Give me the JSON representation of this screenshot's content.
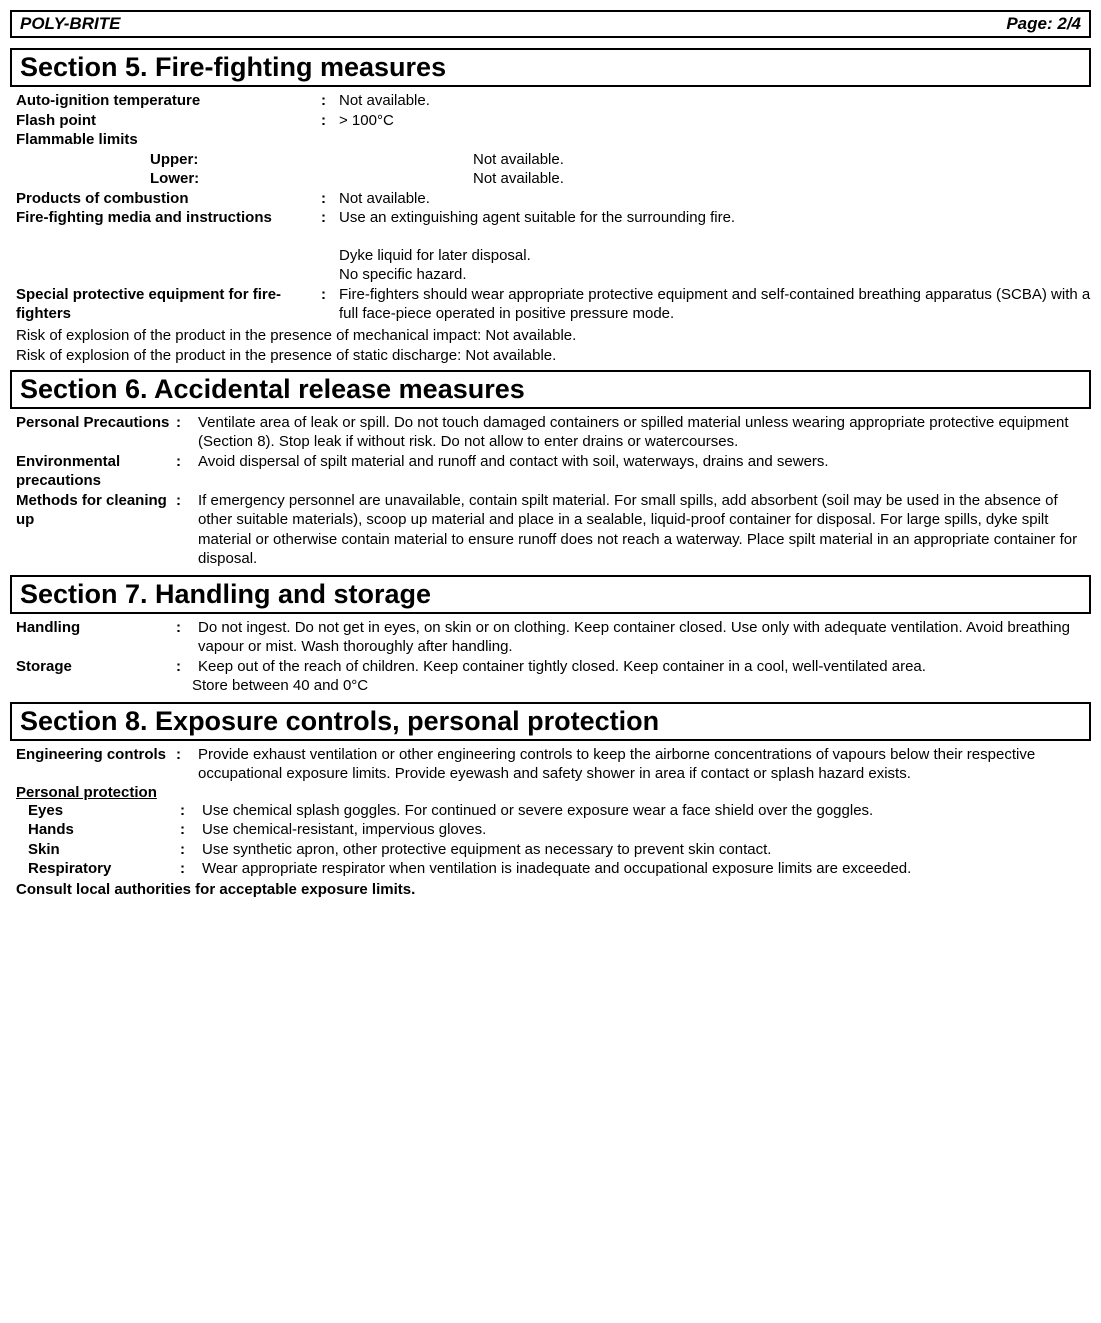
{
  "header": {
    "product": "POLY-BRITE",
    "page": "Page: 2/4"
  },
  "section5": {
    "title": "Section 5. Fire-fighting measures",
    "auto_ignition_label": "Auto-ignition temperature",
    "auto_ignition_value": "Not available.",
    "flash_point_label": "Flash point",
    "flash_point_value": "> 100°C",
    "flammable_limits_label": "Flammable limits",
    "upper_label": "Upper:",
    "upper_value": "Not available.",
    "lower_label": "Lower:",
    "lower_value": "Not available.",
    "products_combustion_label": "Products of combustion",
    "products_combustion_value": "Not available.",
    "firefighting_media_label": "Fire-fighting media and instructions",
    "firefighting_media_value1": "Use an extinguishing agent suitable for the surrounding fire.",
    "firefighting_media_value2": "Dyke liquid for later disposal.",
    "firefighting_media_value3": "No specific hazard.",
    "special_equipment_label": "Special protective equipment for fire-fighters",
    "special_equipment_value": "Fire-fighters should wear appropriate protective equipment and self-contained breathing apparatus (SCBA) with a full face-piece operated in positive pressure mode.",
    "risk_mechanical": "Risk of explosion of the product in the presence of mechanical impact: Not available.",
    "risk_static": "Risk of explosion of the product in the presence of static discharge: Not available."
  },
  "section6": {
    "title": "Section 6. Accidental release measures",
    "personal_label": "Personal Precautions",
    "personal_value": "Ventilate area of leak or spill. Do not touch damaged containers or spilled material unless wearing appropriate protective equipment (Section 8).  Stop leak if without risk.  Do not allow to enter drains or watercourses.",
    "environmental_label": "Environmental precautions",
    "environmental_value": "Avoid dispersal of spilt material and runoff and contact with soil, waterways, drains and sewers.",
    "methods_label": "Methods for cleaning up",
    "methods_value": "If emergency personnel are unavailable, contain spilt material.  For small spills, add absorbent (soil may be used in the absence of other suitable materials), scoop up material and place in a sealable, liquid-proof container for disposal.  For large spills, dyke spilt material or otherwise contain material to ensure runoff does not reach a waterway.  Place spilt material in an appropriate container for disposal."
  },
  "section7": {
    "title": "Section 7. Handling and storage",
    "handling_label": "Handling",
    "handling_value": "Do not ingest.  Do not get in eyes, on skin or on clothing.  Keep container closed.  Use only with adequate ventilation.  Avoid breathing vapour or mist.  Wash thoroughly after handling.",
    "storage_label": "Storage",
    "storage_value1": "Keep out of the reach of children.  Keep container tightly closed.  Keep container in a cool, well-ventilated area.",
    "storage_value2": "Store between 40 and 0°C"
  },
  "section8": {
    "title": "Section 8. Exposure controls, personal protection",
    "engineering_label": "Engineering controls",
    "engineering_value": "Provide exhaust ventilation or other engineering controls to keep the airborne concentrations of vapours below their respective occupational exposure limits.  Provide eyewash and safety shower in area if contact or splash hazard exists.",
    "personal_protection_heading": "Personal protection",
    "eyes_label": "Eyes",
    "eyes_value": "Use chemical splash goggles. For continued or severe exposure wear a face shield over the goggles.",
    "hands_label": "Hands",
    "hands_value": "Use chemical-resistant, impervious gloves.",
    "skin_label": "Skin",
    "skin_value": "Use synthetic apron, other protective equipment as necessary to prevent skin contact.",
    "respiratory_label": "Respiratory",
    "respiratory_value": "Wear appropriate respirator when ventilation is inadequate and occupational exposure limits are exceeded.",
    "consult": "Consult local authorities for acceptable exposure limits."
  }
}
